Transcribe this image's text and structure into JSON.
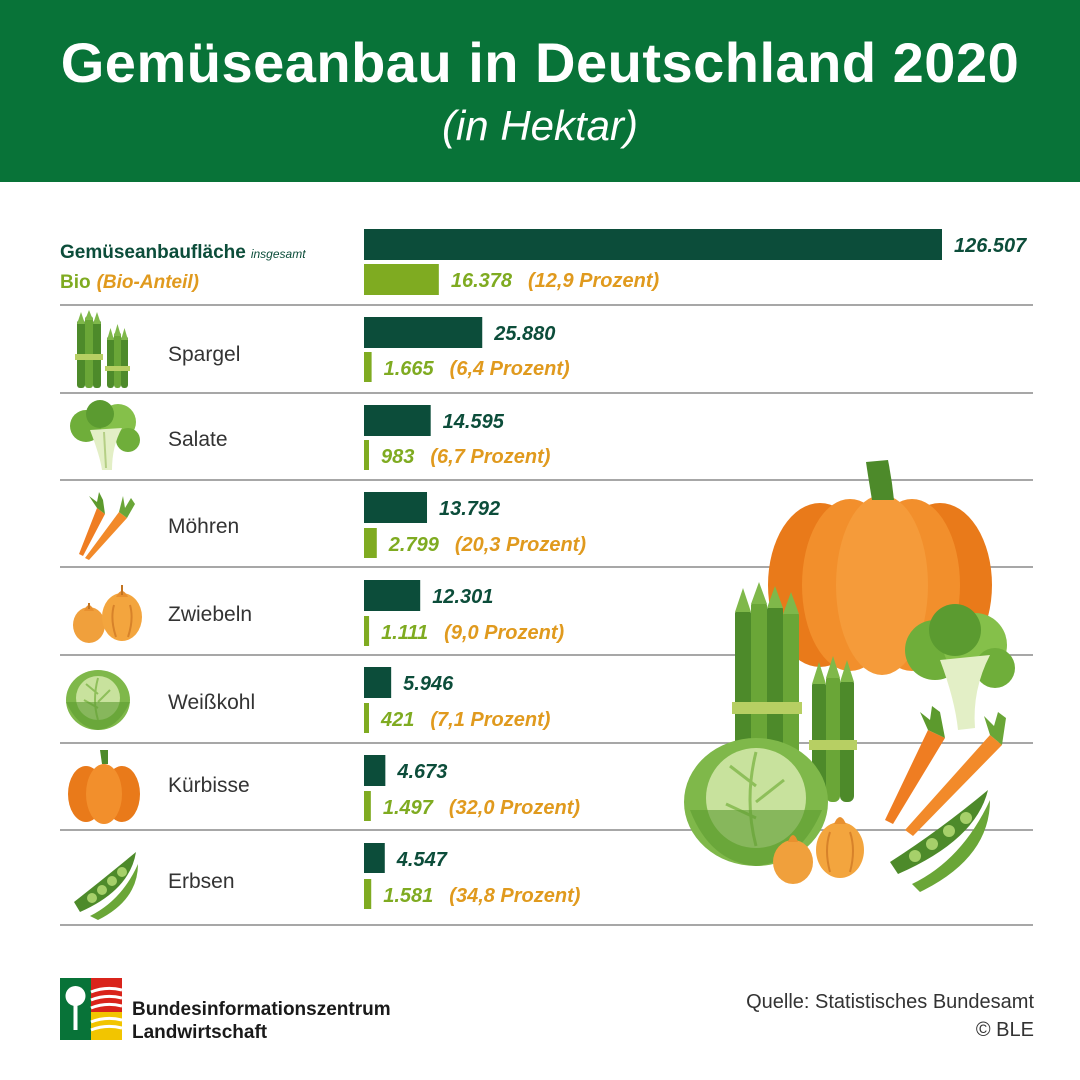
{
  "header": {
    "title": "Gemüseanbau in Deutschland 2020",
    "subtitle": "(in Hektar)"
  },
  "legend": {
    "total_main": "Gemüseanbaufläche",
    "total_small": "insgesamt",
    "bio_main": "Bio",
    "bio_paren": "(Bio-Anteil)"
  },
  "chart_data": {
    "type": "bar",
    "title": "Gemüseanbau in Deutschland 2020",
    "subtitle": "(in Hektar)",
    "categories": [
      "Gemüseanbaufläche insgesamt",
      "Spargel",
      "Salate",
      "Möhren",
      "Zwiebeln",
      "Weißkohl",
      "Kürbisse",
      "Erbsen"
    ],
    "series": [
      {
        "name": "Gemüseanbaufläche insgesamt",
        "values": [
          126507,
          25880,
          14595,
          13792,
          12301,
          5946,
          4673,
          4547
        ]
      },
      {
        "name": "Bio (Bio-Anteil)",
        "values": [
          16378,
          1665,
          983,
          2799,
          1111,
          421,
          1497,
          1581
        ]
      }
    ],
    "value_labels_total": [
      "126.507",
      "25.880",
      "14.595",
      "13.792",
      "12.301",
      "5.946",
      "4.673",
      "4.547"
    ],
    "value_labels_bio": [
      "16.378",
      "1.665",
      "983",
      "2.799",
      "1.111",
      "421",
      "1.497",
      "1.581"
    ],
    "bio_share_labels": [
      "(12,9 Prozent)",
      "(6,4 Prozent)",
      "(6,7 Prozent)",
      "(20,3 Prozent)",
      "(9,0 Prozent)",
      "(7,1 Prozent)",
      "(32,0 Prozent)",
      "(34,8 Prozent)"
    ],
    "bio_share_percent": [
      12.9,
      6.4,
      6.7,
      20.3,
      9.0,
      7.1,
      32.0,
      34.8
    ],
    "orientation": "horizontal",
    "xlim": [
      0,
      126507
    ],
    "grid": false,
    "colors": {
      "total": "#0c4d3a",
      "bio": "#7fab21",
      "share": "#e09a1e"
    }
  },
  "rows": [
    {
      "label": "Spargel",
      "icon": "asparagus-icon"
    },
    {
      "label": "Salate",
      "icon": "lettuce-icon"
    },
    {
      "label": "Möhren",
      "icon": "carrot-icon"
    },
    {
      "label": "Zwiebeln",
      "icon": "onion-icon"
    },
    {
      "label": "Weißkohl",
      "icon": "cabbage-icon"
    },
    {
      "label": "Kürbisse",
      "icon": "pumpkin-icon"
    },
    {
      "label": "Erbsen",
      "icon": "pea-pod-icon"
    }
  ],
  "footer": {
    "org_line1": "Bundesinformationszentrum",
    "org_line2": "Landwirtschaft",
    "source": "Quelle: Statistisches Bundesamt",
    "copyright": "© BLE"
  },
  "colors": {
    "header_bg": "#087338",
    "divider": "#8a8a8a"
  }
}
